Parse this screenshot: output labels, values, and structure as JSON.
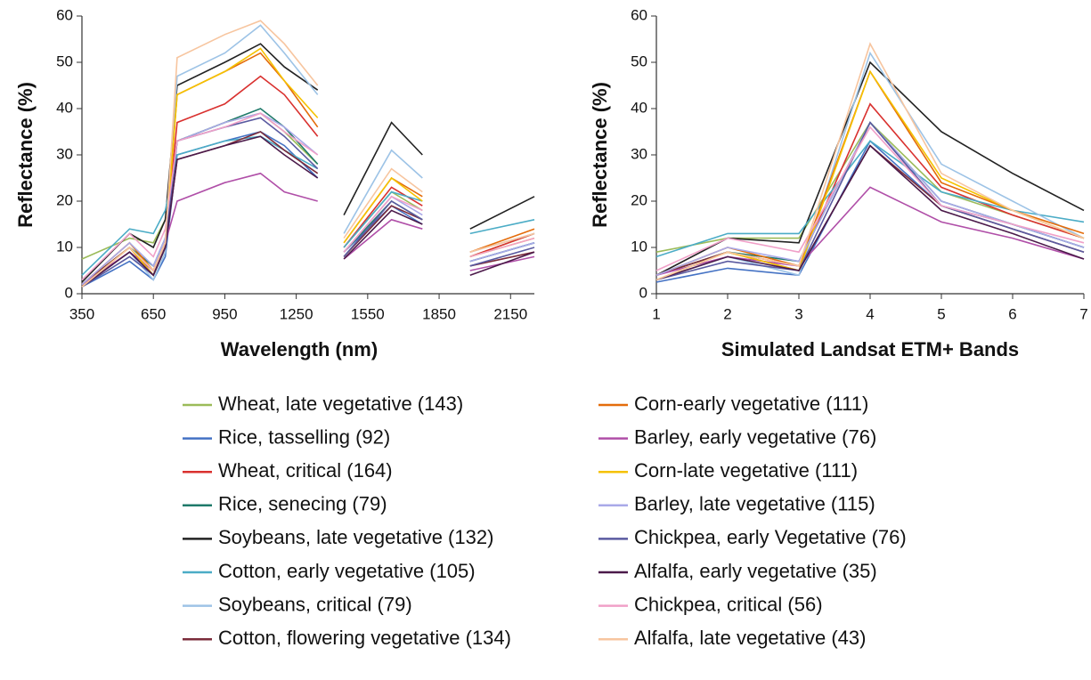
{
  "chart_data": [
    {
      "type": "line",
      "xlabel": "Wavelength (nm)",
      "ylabel": "Reflectance (%)",
      "x": [
        350,
        550,
        650,
        700,
        750,
        950,
        1100,
        1200,
        1340,
        1400,
        1450,
        1650,
        1780,
        1900,
        1980,
        2250
      ],
      "xlim": [
        350,
        2250
      ],
      "xticks": [
        350,
        650,
        950,
        1250,
        1550,
        1850,
        2150
      ],
      "ylim": [
        0,
        60
      ],
      "yticks": [
        0,
        10,
        20,
        30,
        40,
        50,
        60
      ],
      "series": [
        {
          "name": "Wheat, late vegetative (143)",
          "color": "#9bbb59",
          "values": [
            7.5,
            12,
            11,
            16,
            33,
            37,
            39,
            35,
            28,
            null,
            10,
            22,
            18,
            null,
            8,
            13
          ]
        },
        {
          "name": "Rice, tasselling (92)",
          "color": "#4472c4",
          "values": [
            1.5,
            7,
            3,
            8,
            30,
            33,
            35,
            32,
            25,
            null,
            9,
            19,
            15,
            null,
            7,
            11
          ]
        },
        {
          "name": "Wheat, critical (164)",
          "color": "#d9312f",
          "values": [
            2,
            10,
            5,
            11,
            37,
            41,
            47,
            43,
            34,
            null,
            10,
            23,
            19,
            null,
            8,
            13
          ]
        },
        {
          "name": "Rice, senecing (79)",
          "color": "#1f7a6a",
          "values": [
            2,
            10,
            6,
            12,
            33,
            37,
            40,
            36,
            28,
            null,
            9,
            20,
            16,
            null,
            7,
            11
          ]
        },
        {
          "name": "Soybeans, late vegetative (132)",
          "color": "#222222",
          "values": [
            2.5,
            13,
            10,
            16,
            45,
            50,
            54,
            49,
            44,
            null,
            17,
            37,
            30,
            null,
            14,
            21
          ]
        },
        {
          "name": "Cotton, early vegetative (105)",
          "color": "#4bacc6",
          "values": [
            4,
            14,
            13,
            18,
            30,
            33,
            34,
            31,
            27,
            null,
            10,
            22,
            20,
            null,
            13,
            16
          ]
        },
        {
          "name": "Soybeans, critical (79)",
          "color": "#9dc3e6",
          "values": [
            1.5,
            9,
            3,
            9,
            47,
            52,
            58,
            52,
            43,
            null,
            13,
            31,
            25,
            null,
            9,
            13
          ]
        },
        {
          "name": "Cotton, flowering vegetative (134)",
          "color": "#7b2c3b",
          "values": [
            2,
            10,
            4,
            10,
            29,
            32,
            35,
            31,
            26,
            null,
            8,
            19,
            16,
            null,
            6,
            9
          ]
        },
        {
          "name": "Corn-early vegetative (111)",
          "color": "#e46c0a",
          "values": [
            2,
            11,
            5,
            11,
            43,
            48,
            52,
            46,
            36,
            null,
            11,
            25,
            21,
            null,
            9,
            14
          ]
        },
        {
          "name": "Barley, early vegetative (76)",
          "color": "#b04fa8",
          "values": [
            2,
            9,
            5,
            11,
            20,
            24,
            26,
            22,
            20,
            null,
            7.5,
            16,
            14,
            null,
            5,
            8
          ]
        },
        {
          "name": "Corn-late vegetative (111)",
          "color": "#f5c200",
          "values": [
            1.5,
            10,
            4,
            10,
            43,
            48,
            53,
            46,
            38,
            null,
            11,
            25,
            20,
            null,
            8,
            12
          ]
        },
        {
          "name": "Barley, late vegetative (115)",
          "color": "#a9a9e8",
          "values": [
            2,
            11,
            6,
            12,
            33,
            37,
            39,
            36,
            30,
            null,
            9,
            21,
            17,
            null,
            7,
            11
          ]
        },
        {
          "name": "Chickpea, early Vegetative (76)",
          "color": "#5a5aa0",
          "values": [
            1.5,
            8,
            4,
            10,
            33,
            36,
            38,
            34,
            27,
            null,
            8,
            20,
            16,
            null,
            6,
            10
          ]
        },
        {
          "name": "Alfalfa, early vegetative (35)",
          "color": "#4b1a4a",
          "values": [
            1.5,
            9,
            4,
            10,
            29,
            32,
            34,
            30,
            25,
            null,
            7.5,
            18,
            15,
            null,
            4,
            9
          ]
        },
        {
          "name": "Chickpea, critical (56)",
          "color": "#f0a0c8",
          "values": [
            3,
            13,
            8,
            14,
            33,
            36,
            39,
            35,
            30,
            null,
            9,
            21,
            18,
            null,
            8,
            12
          ]
        },
        {
          "name": "Alfalfa, late vegetative (43)",
          "color": "#f7c59f",
          "values": [
            1.5,
            10,
            5,
            11,
            51,
            56,
            59,
            54,
            45,
            null,
            12,
            27,
            22,
            null,
            9,
            13
          ]
        }
      ]
    },
    {
      "type": "line",
      "xlabel": "Simulated Landsat ETM+ Bands",
      "ylabel": "Reflectance (%)",
      "x": [
        1,
        2,
        3,
        4,
        5,
        6,
        7
      ],
      "xlim": [
        1,
        7
      ],
      "xticks": [
        1,
        2,
        3,
        4,
        5,
        6,
        7
      ],
      "ylim": [
        0,
        60
      ],
      "yticks": [
        0,
        10,
        20,
        30,
        40,
        50,
        60
      ],
      "series": [
        {
          "color": "#9bbb59",
          "values": [
            9,
            12,
            12,
            37,
            22,
            17,
            12
          ]
        },
        {
          "color": "#4472c4",
          "values": [
            2.5,
            5.5,
            4,
            33,
            19,
            15,
            10
          ]
        },
        {
          "color": "#d9312f",
          "values": [
            4,
            9,
            6,
            41,
            23,
            17,
            12
          ]
        },
        {
          "color": "#1f7a6a",
          "values": [
            4,
            9,
            7,
            37,
            20,
            15,
            10
          ]
        },
        {
          "color": "#222222",
          "values": [
            4,
            12,
            11,
            50,
            35,
            26,
            18
          ]
        },
        {
          "color": "#4bacc6",
          "values": [
            8,
            13,
            13,
            33,
            22,
            18,
            15.5
          ]
        },
        {
          "color": "#9dc3e6",
          "values": [
            3,
            8,
            4,
            52,
            28,
            20,
            12
          ]
        },
        {
          "color": "#7b2c3b",
          "values": [
            4,
            9,
            5,
            32,
            19,
            14,
            9
          ]
        },
        {
          "color": "#e46c0a",
          "values": [
            4,
            10,
            6,
            48,
            24,
            18,
            13
          ]
        },
        {
          "color": "#b04fa8",
          "values": [
            4,
            8,
            6,
            23,
            15.5,
            12,
            7.5
          ]
        },
        {
          "color": "#f5c200",
          "values": [
            3,
            9,
            5,
            48,
            25,
            18,
            12
          ]
        },
        {
          "color": "#a9a9e8",
          "values": [
            4,
            10,
            7,
            37,
            20,
            15,
            10
          ]
        },
        {
          "color": "#5a5aa0",
          "values": [
            3,
            7,
            5,
            37,
            19,
            14,
            9
          ]
        },
        {
          "color": "#4b1a4a",
          "values": [
            3,
            8,
            5,
            32,
            18,
            13,
            7.5
          ]
        },
        {
          "color": "#f0a0c8",
          "values": [
            5,
            12,
            9,
            36,
            19,
            15,
            11
          ]
        },
        {
          "color": "#f7c59f",
          "values": [
            3,
            9,
            6,
            54,
            26,
            18,
            12
          ]
        }
      ]
    }
  ]
}
